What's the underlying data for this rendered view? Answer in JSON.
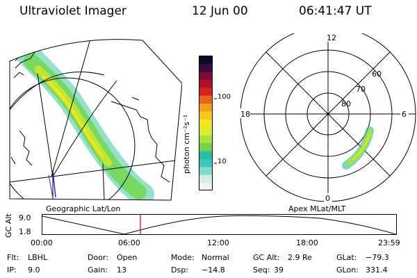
{
  "header": {
    "instrument": "Ultraviolet Imager",
    "date": "12 Jun 00",
    "time": "06:41:47 UT"
  },
  "geo_panel": {
    "caption": "Geographic Lat/Lon"
  },
  "colorbar": {
    "label": "photon cm⁻²s⁻¹",
    "ticks": [
      {
        "label": "100",
        "value": 100
      },
      {
        "label": "10",
        "value": 10
      }
    ],
    "colors": [
      "#f2f2f2",
      "#cfeee8",
      "#7fdccc",
      "#39c8c0",
      "#26c0a8",
      "#6fd64a",
      "#a9e23a",
      "#d8ee2a",
      "#f4e61c",
      "#f6c81a",
      "#f2a012",
      "#e8641a",
      "#d8201c",
      "#b0102c",
      "#7a0b3a",
      "#3a0a3e",
      "#10082a"
    ]
  },
  "polar_panel": {
    "caption": "Apex MLat/MLT",
    "mlt_labels": {
      "top": "12",
      "left": "18",
      "right": "6",
      "bottom": "0"
    },
    "lat_labels": [
      "60",
      "70",
      "80"
    ]
  },
  "timeline": {
    "ylabel": "GC Alt",
    "y_ticks": [
      "9.0",
      "1.8"
    ],
    "x_ticks": [
      "00:00",
      "06:00",
      "12:00",
      "18:00",
      "23:59"
    ],
    "current_time": "06:41:47"
  },
  "info": {
    "flt_label": "Flt:",
    "flt": "LBHL",
    "ip_label": "IP:",
    "ip": "9.0",
    "door_label": "Door:",
    "door": "Open",
    "gain_label": "Gain:",
    "gain": "13",
    "mode_label": "Mode:",
    "mode": "Normal",
    "dsp_label": "Dsp:",
    "dsp": "−14.8",
    "gcalt_label": "GC Alt:",
    "gcalt": "2.9 Re",
    "seq_label": "Seq:",
    "seq": "39",
    "glat_label": "GLat:",
    "glat": "−79.3",
    "glon_label": "GLon:",
    "glon": "331.4"
  },
  "colors": {
    "accent_red": "#d00000",
    "track_blue": "#2020c0"
  }
}
